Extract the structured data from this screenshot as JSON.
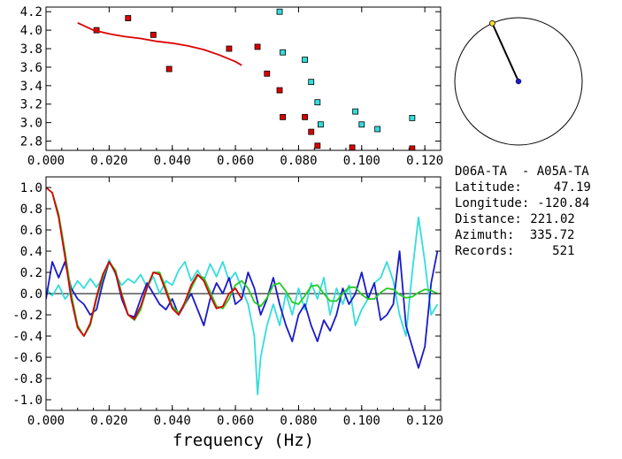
{
  "chart_data": [
    {
      "type": "scatter",
      "panel": "dispersion",
      "xlim": [
        0.0,
        0.125
      ],
      "ylim": [
        2.7,
        4.25
      ],
      "x_ticks": [
        0.0,
        0.02,
        0.04,
        0.06,
        0.08,
        0.1,
        0.12
      ],
      "x_tick_labels": [
        "0.000",
        "0.020",
        "0.040",
        "0.060",
        "0.080",
        "0.100",
        "0.120"
      ],
      "y_ticks": [
        2.8,
        3.0,
        3.2,
        3.4,
        3.6,
        3.8,
        4.0,
        4.2
      ],
      "y_tick_labels": [
        "2.8",
        "3.0",
        "3.2",
        "3.4",
        "3.6",
        "3.8",
        "4.0",
        "4.2"
      ],
      "series": [
        {
          "marker": "square",
          "color": "#dd0000",
          "points": [
            [
              0.016,
              4.0
            ],
            [
              0.026,
              4.13
            ],
            [
              0.034,
              3.95
            ],
            [
              0.039,
              3.58
            ],
            [
              0.058,
              3.8
            ],
            [
              0.067,
              3.82
            ],
            [
              0.07,
              3.53
            ],
            [
              0.074,
              3.35
            ],
            [
              0.075,
              3.06
            ],
            [
              0.082,
              3.06
            ],
            [
              0.084,
              2.9
            ],
            [
              0.086,
              2.75
            ],
            [
              0.097,
              2.73
            ],
            [
              0.116,
              2.72
            ]
          ]
        },
        {
          "marker": "square",
          "color": "#33dddd",
          "points": [
            [
              0.074,
              4.2
            ],
            [
              0.075,
              3.76
            ],
            [
              0.082,
              3.68
            ],
            [
              0.084,
              3.44
            ],
            [
              0.086,
              3.22
            ],
            [
              0.087,
              2.98
            ],
            [
              0.098,
              3.12
            ],
            [
              0.1,
              2.98
            ],
            [
              0.105,
              2.93
            ],
            [
              0.116,
              3.05
            ]
          ]
        },
        {
          "type": "line",
          "color": "#dd0000",
          "x": [
            0.01,
            0.015,
            0.02,
            0.025,
            0.03,
            0.035,
            0.04,
            0.045,
            0.05,
            0.055,
            0.06,
            0.062
          ],
          "y": [
            4.08,
            4.0,
            3.96,
            3.93,
            3.91,
            3.88,
            3.86,
            3.83,
            3.79,
            3.73,
            3.66,
            3.62
          ]
        }
      ]
    },
    {
      "type": "line",
      "panel": "coherence",
      "xlim": [
        0.0,
        0.125
      ],
      "ylim": [
        -1.1,
        1.1
      ],
      "xlabel": "frequency (Hz)",
      "x_ticks": [
        0.0,
        0.02,
        0.04,
        0.06,
        0.08,
        0.1,
        0.12
      ],
      "x_tick_labels": [
        "0.000",
        "0.020",
        "0.040",
        "0.060",
        "0.080",
        "0.100",
        "0.120"
      ],
      "y_ticks": [
        -1.0,
        -0.8,
        -0.6,
        -0.4,
        -0.2,
        0.0,
        0.2,
        0.4,
        0.6,
        0.8,
        1.0
      ],
      "y_tick_labels": [
        "-1.0",
        "-0.8",
        "-0.6",
        "-0.4",
        "-0.2",
        "0.0",
        "0.2",
        "0.4",
        "0.6",
        "0.8",
        "1.0"
      ],
      "series": [
        {
          "color": "#33dddd",
          "x": [
            0.0,
            0.002,
            0.004,
            0.006,
            0.008,
            0.01,
            0.012,
            0.014,
            0.016,
            0.018,
            0.02,
            0.022,
            0.024,
            0.026,
            0.028,
            0.03,
            0.032,
            0.034,
            0.036,
            0.038,
            0.04,
            0.042,
            0.044,
            0.046,
            0.048,
            0.05,
            0.052,
            0.054,
            0.056,
            0.058,
            0.06,
            0.062,
            0.064,
            0.066,
            0.067,
            0.068,
            0.07,
            0.072,
            0.074,
            0.076,
            0.078,
            0.08,
            0.082,
            0.084,
            0.086,
            0.088,
            0.09,
            0.092,
            0.094,
            0.096,
            0.098,
            0.1,
            0.102,
            0.104,
            0.106,
            0.108,
            0.11,
            0.112,
            0.114,
            0.116,
            0.118,
            0.12,
            0.122,
            0.124
          ],
          "y": [
            0.05,
            -0.02,
            0.08,
            -0.05,
            0.02,
            0.12,
            0.05,
            0.14,
            0.06,
            0.15,
            0.32,
            0.18,
            0.08,
            0.14,
            0.1,
            0.18,
            0.06,
            0.16,
            0.0,
            0.12,
            0.08,
            0.22,
            0.3,
            0.12,
            0.22,
            0.12,
            0.28,
            0.16,
            0.3,
            0.12,
            0.2,
            0.05,
            -0.1,
            -0.4,
            -0.95,
            -0.6,
            -0.3,
            -0.1,
            -0.3,
            0.0,
            -0.2,
            0.05,
            -0.15,
            0.1,
            -0.05,
            0.15,
            -0.2,
            0.05,
            -0.1,
            0.08,
            -0.3,
            -0.15,
            -0.05,
            0.1,
            0.15,
            0.3,
            0.12,
            -0.2,
            -0.4,
            0.2,
            0.72,
            0.3,
            -0.2,
            -0.1
          ]
        },
        {
          "color": "#1a1acc",
          "x": [
            0.0,
            0.002,
            0.004,
            0.006,
            0.008,
            0.01,
            0.012,
            0.014,
            0.016,
            0.018,
            0.02,
            0.022,
            0.024,
            0.026,
            0.028,
            0.03,
            0.032,
            0.034,
            0.036,
            0.038,
            0.04,
            0.042,
            0.044,
            0.046,
            0.048,
            0.05,
            0.052,
            0.054,
            0.056,
            0.058,
            0.06,
            0.062,
            0.064,
            0.066,
            0.068,
            0.07,
            0.072,
            0.074,
            0.076,
            0.078,
            0.08,
            0.082,
            0.084,
            0.086,
            0.088,
            0.09,
            0.092,
            0.094,
            0.096,
            0.098,
            0.1,
            0.102,
            0.104,
            0.106,
            0.108,
            0.11,
            0.112,
            0.114,
            0.116,
            0.118,
            0.12,
            0.122,
            0.124
          ],
          "y": [
            -0.05,
            0.3,
            0.15,
            0.3,
            0.05,
            -0.05,
            -0.1,
            -0.2,
            -0.15,
            0.1,
            0.3,
            0.2,
            -0.05,
            -0.2,
            -0.22,
            -0.05,
            0.1,
            0.0,
            -0.1,
            -0.15,
            -0.05,
            -0.2,
            -0.1,
            0.0,
            -0.15,
            -0.3,
            -0.05,
            0.1,
            0.0,
            0.15,
            -0.1,
            -0.05,
            0.2,
            0.05,
            -0.2,
            -0.05,
            0.15,
            -0.1,
            -0.3,
            -0.45,
            -0.2,
            -0.1,
            -0.3,
            -0.45,
            -0.25,
            -0.35,
            -0.2,
            0.05,
            -0.1,
            0.0,
            0.2,
            -0.05,
            0.1,
            -0.25,
            -0.2,
            -0.1,
            0.4,
            -0.3,
            -0.5,
            -0.7,
            -0.5,
            0.1,
            0.4
          ]
        },
        {
          "color": "#22cc22",
          "x": [
            0.0,
            0.002,
            0.004,
            0.006,
            0.008,
            0.01,
            0.012,
            0.014,
            0.016,
            0.018,
            0.02,
            0.022,
            0.024,
            0.026,
            0.028,
            0.03,
            0.032,
            0.034,
            0.036,
            0.038,
            0.04,
            0.042,
            0.044,
            0.046,
            0.048,
            0.05,
            0.052,
            0.054,
            0.056,
            0.058,
            0.06,
            0.062,
            0.064,
            0.066,
            0.068,
            0.07,
            0.072,
            0.074,
            0.076,
            0.078,
            0.08,
            0.082,
            0.084,
            0.086,
            0.088,
            0.09,
            0.092,
            0.094,
            0.096,
            0.098,
            0.1,
            0.102,
            0.104,
            0.106,
            0.108,
            0.11,
            0.112,
            0.114,
            0.116,
            0.118,
            0.12,
            0.122,
            0.124
          ],
          "y": [
            1.0,
            0.95,
            0.75,
            0.4,
            0.0,
            -0.3,
            -0.4,
            -0.3,
            -0.05,
            0.15,
            0.3,
            0.22,
            0.0,
            -0.2,
            -0.25,
            -0.15,
            0.05,
            0.2,
            0.2,
            0.05,
            -0.12,
            -0.18,
            -0.1,
            0.05,
            0.17,
            0.15,
            0.02,
            -0.12,
            -0.14,
            -0.05,
            0.08,
            0.12,
            0.05,
            -0.08,
            -0.12,
            -0.04,
            0.08,
            0.1,
            0.02,
            -0.08,
            -0.1,
            -0.02,
            0.07,
            0.08,
            0.0,
            -0.07,
            -0.07,
            0.0,
            0.06,
            0.06,
            -0.01,
            -0.05,
            -0.05,
            0.01,
            0.05,
            0.04,
            -0.01,
            -0.04,
            -0.03,
            0.01,
            0.04,
            0.03,
            0.0
          ]
        },
        {
          "color": "#dd0000",
          "x": [
            0.0,
            0.002,
            0.004,
            0.006,
            0.008,
            0.01,
            0.012,
            0.014,
            0.016,
            0.018,
            0.02,
            0.022,
            0.024,
            0.026,
            0.028,
            0.03,
            0.032,
            0.034,
            0.036,
            0.038,
            0.04,
            0.042,
            0.044,
            0.046,
            0.048,
            0.05,
            0.052,
            0.054,
            0.056,
            0.058,
            0.06,
            0.062
          ],
          "y": [
            1.0,
            0.95,
            0.72,
            0.35,
            -0.05,
            -0.32,
            -0.4,
            -0.28,
            -0.03,
            0.18,
            0.3,
            0.2,
            -0.02,
            -0.2,
            -0.24,
            -0.12,
            0.06,
            0.2,
            0.18,
            0.02,
            -0.14,
            -0.2,
            -0.08,
            0.08,
            0.18,
            0.12,
            -0.02,
            -0.14,
            -0.12,
            0.0,
            0.05,
            -0.05
          ]
        }
      ]
    }
  ],
  "polar": {
    "azimuth_deg": 335.72,
    "dot_color": "#1a1acc",
    "star_color": "#ffdd33"
  },
  "info": {
    "title": "D06A-TA  - A05A-TA",
    "rows": [
      {
        "label": "Latitude:",
        "value": "47.19"
      },
      {
        "label": "Longitude:",
        "value": "-120.84"
      },
      {
        "label": "Distance:",
        "value": "221.02"
      },
      {
        "label": "Azimuth:",
        "value": "335.72"
      },
      {
        "label": "Records:",
        "value": "521"
      }
    ]
  }
}
